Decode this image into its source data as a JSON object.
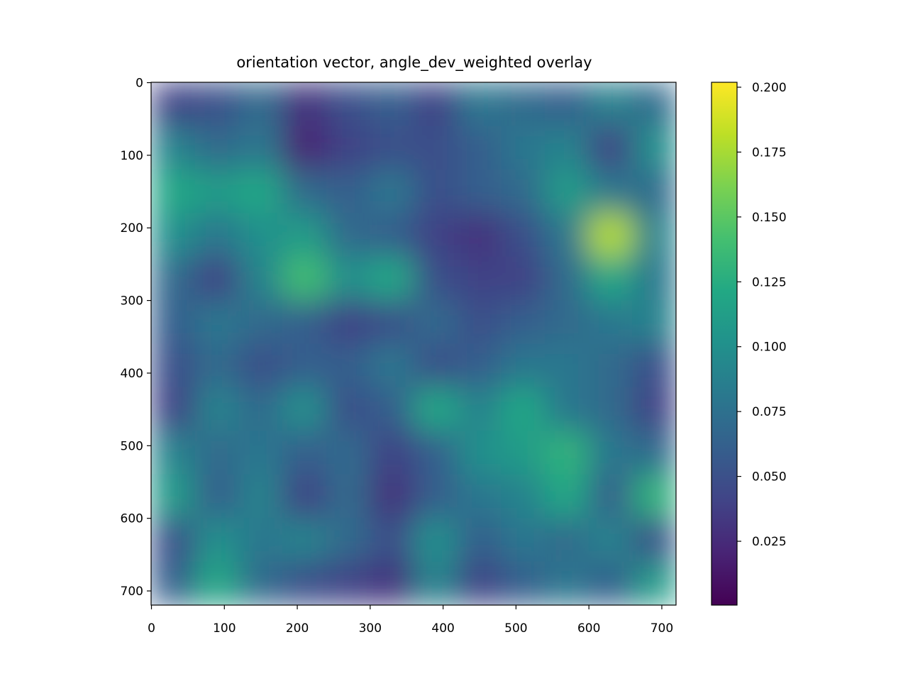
{
  "chart_data": {
    "type": "heatmap",
    "title": "orientation vector, angle_dev_weighted overlay",
    "colormap": "viridis",
    "xlim": [
      -0.5,
      719.5
    ],
    "xticks": [
      0,
      100,
      200,
      300,
      400,
      500,
      600,
      700
    ],
    "ylim": [
      719.5,
      -0.5
    ],
    "yticks": [
      0,
      100,
      200,
      300,
      400,
      500,
      600,
      700
    ],
    "clim": [
      0.0004,
      0.2019
    ],
    "cticks": [
      {
        "value": 0.025,
        "label": "0.025"
      },
      {
        "value": 0.05,
        "label": "0.050"
      },
      {
        "value": 0.075,
        "label": "0.075"
      },
      {
        "value": 0.1,
        "label": "0.100"
      },
      {
        "value": 0.125,
        "label": "0.125"
      },
      {
        "value": 0.15,
        "label": "0.150"
      },
      {
        "value": 0.175,
        "label": "0.175"
      },
      {
        "value": 0.2,
        "label": "0.200"
      }
    ],
    "z": [
      [
        0.04,
        0.05,
        0.07,
        0.03,
        0.05,
        0.06,
        0.04,
        0.08,
        0.07,
        0.06,
        0.09,
        0.07
      ],
      [
        0.09,
        0.07,
        0.08,
        0.02,
        0.04,
        0.05,
        0.05,
        0.06,
        0.08,
        0.09,
        0.04,
        0.1
      ],
      [
        0.12,
        0.11,
        0.12,
        0.07,
        0.06,
        0.08,
        0.05,
        0.06,
        0.07,
        0.11,
        0.08,
        0.07
      ],
      [
        0.1,
        0.08,
        0.1,
        0.11,
        0.07,
        0.06,
        0.04,
        0.03,
        0.05,
        0.08,
        0.18,
        0.09
      ],
      [
        0.07,
        0.04,
        0.09,
        0.14,
        0.1,
        0.12,
        0.05,
        0.04,
        0.04,
        0.07,
        0.12,
        0.08
      ],
      [
        0.06,
        0.08,
        0.07,
        0.06,
        0.04,
        0.05,
        0.07,
        0.05,
        0.06,
        0.07,
        0.08,
        0.09
      ],
      [
        0.05,
        0.07,
        0.05,
        0.06,
        0.06,
        0.08,
        0.05,
        0.06,
        0.08,
        0.08,
        0.07,
        0.05
      ],
      [
        0.04,
        0.09,
        0.07,
        0.1,
        0.05,
        0.06,
        0.12,
        0.09,
        0.12,
        0.08,
        0.07,
        0.04
      ],
      [
        0.09,
        0.07,
        0.08,
        0.06,
        0.07,
        0.04,
        0.06,
        0.1,
        0.11,
        0.13,
        0.08,
        0.07
      ],
      [
        0.11,
        0.06,
        0.09,
        0.04,
        0.07,
        0.03,
        0.06,
        0.08,
        0.09,
        0.12,
        0.06,
        0.13
      ],
      [
        0.05,
        0.1,
        0.08,
        0.09,
        0.07,
        0.05,
        0.1,
        0.06,
        0.08,
        0.07,
        0.09,
        0.05
      ],
      [
        0.06,
        0.12,
        0.07,
        0.05,
        0.04,
        0.03,
        0.09,
        0.04,
        0.06,
        0.08,
        0.06,
        0.11
      ]
    ]
  }
}
